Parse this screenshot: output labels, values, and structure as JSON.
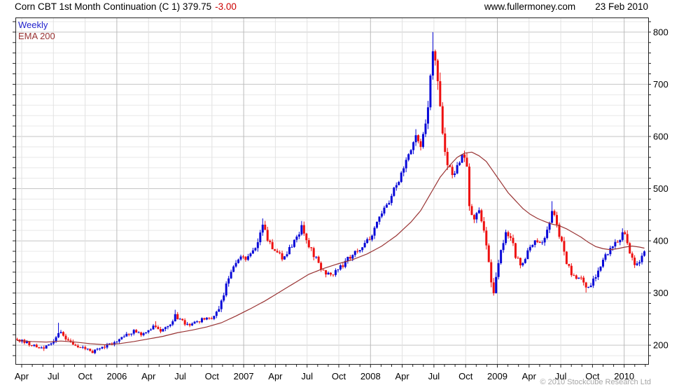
{
  "header": {
    "title": "Corn CBT 1st Month Continuation (C 1) 379.75",
    "change": "-3.00",
    "website": "www.fullermoney.com",
    "date": "23 Feb 2010"
  },
  "legend": {
    "weekly": "Weekly",
    "ema200": "EMA 200"
  },
  "footer": {
    "copyright": "© 2010 Stockcube Research Ltd"
  },
  "chart_data": {
    "type": "candlestick",
    "title": "Corn CBT 1st Month Continuation (C 1)",
    "interval": "weekly",
    "last_price": 379.75,
    "change": -3.0,
    "weeks": 259,
    "x_range": {
      "start": "Mar 2005",
      "end": "Feb 2010"
    },
    "ylim": [
      164,
      828
    ],
    "y_ticks": [
      200,
      300,
      400,
      500,
      600,
      700,
      800
    ],
    "y_minor_step": 20,
    "y_axis_side": "right",
    "grid": true,
    "legend_position": "top-left",
    "x_labels": [
      "Apr",
      "Jul",
      "Oct",
      "2006",
      "Apr",
      "Jul",
      "Oct",
      "2007",
      "Apr",
      "Jul",
      "Oct",
      "2008",
      "Apr",
      "Jul",
      "Oct",
      "2009",
      "Apr",
      "Jul",
      "Oct",
      "2010"
    ],
    "x_label_month_step": 3,
    "close_keypoints": [
      [
        0,
        211
      ],
      [
        3,
        206
      ],
      [
        6,
        200
      ],
      [
        9,
        195
      ],
      [
        11,
        193
      ],
      [
        13,
        200
      ],
      [
        16,
        213
      ],
      [
        17,
        226
      ],
      [
        18,
        228
      ],
      [
        20,
        213
      ],
      [
        23,
        203
      ],
      [
        26,
        197
      ],
      [
        29,
        192
      ],
      [
        31,
        188
      ],
      [
        34,
        193
      ],
      [
        37,
        199
      ],
      [
        40,
        206
      ],
      [
        42,
        215
      ],
      [
        45,
        222
      ],
      [
        48,
        227
      ],
      [
        51,
        221
      ],
      [
        54,
        229
      ],
      [
        57,
        238
      ],
      [
        59,
        227
      ],
      [
        61,
        233
      ],
      [
        63,
        243
      ],
      [
        65,
        257
      ],
      [
        67,
        247
      ],
      [
        69,
        242
      ],
      [
        71,
        238
      ],
      [
        73,
        244
      ],
      [
        75,
        247
      ],
      [
        77,
        250
      ],
      [
        79,
        251
      ],
      [
        80,
        253
      ],
      [
        82,
        262
      ],
      [
        84,
        285
      ],
      [
        86,
        312
      ],
      [
        88,
        338
      ],
      [
        90,
        358
      ],
      [
        92,
        369
      ],
      [
        94,
        365
      ],
      [
        96,
        375
      ],
      [
        98,
        386
      ],
      [
        100,
        420
      ],
      [
        101,
        430
      ],
      [
        103,
        404
      ],
      [
        105,
        388
      ],
      [
        107,
        377
      ],
      [
        109,
        367
      ],
      [
        111,
        376
      ],
      [
        113,
        391
      ],
      [
        115,
        408
      ],
      [
        117,
        426
      ],
      [
        119,
        404
      ],
      [
        121,
        383
      ],
      [
        123,
        364
      ],
      [
        125,
        349
      ],
      [
        127,
        339
      ],
      [
        130,
        337
      ],
      [
        133,
        349
      ],
      [
        136,
        365
      ],
      [
        139,
        377
      ],
      [
        142,
        389
      ],
      [
        145,
        406
      ],
      [
        147,
        424
      ],
      [
        149,
        444
      ],
      [
        152,
        468
      ],
      [
        155,
        498
      ],
      [
        158,
        530
      ],
      [
        160,
        554
      ],
      [
        162,
        578
      ],
      [
        164,
        600
      ],
      [
        166,
        584
      ],
      [
        167,
        598
      ],
      [
        168,
        622
      ],
      [
        169,
        662
      ],
      [
        170,
        718
      ],
      [
        171,
        772
      ],
      [
        172,
        752
      ],
      [
        173,
        708
      ],
      [
        174,
        658
      ],
      [
        175,
        612
      ],
      [
        176,
        578
      ],
      [
        177,
        550
      ],
      [
        178,
        538
      ],
      [
        179,
        522
      ],
      [
        181,
        548
      ],
      [
        183,
        562
      ],
      [
        184,
        566
      ],
      [
        185,
        540
      ],
      [
        186,
        468
      ],
      [
        187,
        452
      ],
      [
        188,
        442
      ],
      [
        189,
        458
      ],
      [
        190,
        462
      ],
      [
        191,
        440
      ],
      [
        192,
        428
      ],
      [
        193,
        398
      ],
      [
        194,
        368
      ],
      [
        195,
        318
      ],
      [
        196,
        302
      ],
      [
        197,
        332
      ],
      [
        198,
        358
      ],
      [
        199,
        380
      ],
      [
        200,
        398
      ],
      [
        201,
        412
      ],
      [
        203,
        405
      ],
      [
        205,
        372
      ],
      [
        207,
        352
      ],
      [
        209,
        368
      ],
      [
        211,
        386
      ],
      [
        213,
        398
      ],
      [
        215,
        392
      ],
      [
        217,
        408
      ],
      [
        219,
        440
      ],
      [
        220,
        460
      ],
      [
        221,
        452
      ],
      [
        222,
        432
      ],
      [
        224,
        396
      ],
      [
        226,
        356
      ],
      [
        228,
        338
      ],
      [
        230,
        331
      ],
      [
        232,
        334
      ],
      [
        233,
        315
      ],
      [
        234,
        307
      ],
      [
        236,
        318
      ],
      [
        238,
        334
      ],
      [
        240,
        354
      ],
      [
        242,
        369
      ],
      [
        244,
        383
      ],
      [
        246,
        396
      ],
      [
        248,
        407
      ],
      [
        249,
        414
      ],
      [
        250,
        410
      ],
      [
        251,
        396
      ],
      [
        252,
        379
      ],
      [
        253,
        362
      ],
      [
        254,
        355
      ],
      [
        255,
        353
      ],
      [
        256,
        363
      ],
      [
        257,
        371
      ],
      [
        258,
        379.75
      ]
    ],
    "spike_highs": [
      [
        17,
        243
      ],
      [
        57,
        246
      ],
      [
        65,
        268
      ],
      [
        101,
        443
      ],
      [
        117,
        438
      ],
      [
        164,
        614
      ],
      [
        171,
        800
      ],
      [
        220,
        476
      ],
      [
        249,
        424
      ]
    ],
    "spike_lows": [
      [
        11,
        189
      ],
      [
        31,
        185
      ],
      [
        127,
        330
      ],
      [
        196,
        295
      ],
      [
        234,
        301
      ],
      [
        254,
        348
      ]
    ],
    "ema200_keypoints": [
      [
        0,
        209
      ],
      [
        6,
        207
      ],
      [
        12,
        206
      ],
      [
        18,
        208
      ],
      [
        24,
        206
      ],
      [
        30,
        203
      ],
      [
        36,
        201
      ],
      [
        42,
        203
      ],
      [
        48,
        207
      ],
      [
        54,
        212
      ],
      [
        60,
        217
      ],
      [
        66,
        224
      ],
      [
        72,
        229
      ],
      [
        78,
        235
      ],
      [
        84,
        243
      ],
      [
        90,
        256
      ],
      [
        96,
        270
      ],
      [
        102,
        285
      ],
      [
        108,
        302
      ],
      [
        114,
        319
      ],
      [
        120,
        336
      ],
      [
        126,
        347
      ],
      [
        132,
        356
      ],
      [
        138,
        364
      ],
      [
        144,
        375
      ],
      [
        150,
        390
      ],
      [
        156,
        410
      ],
      [
        162,
        436
      ],
      [
        166,
        458
      ],
      [
        170,
        490
      ],
      [
        174,
        522
      ],
      [
        178,
        545
      ],
      [
        181,
        560
      ],
      [
        184,
        568
      ],
      [
        187,
        570
      ],
      [
        190,
        563
      ],
      [
        193,
        552
      ],
      [
        196,
        532
      ],
      [
        199,
        512
      ],
      [
        202,
        492
      ],
      [
        205,
        477
      ],
      [
        208,
        462
      ],
      [
        211,
        451
      ],
      [
        214,
        443
      ],
      [
        217,
        437
      ],
      [
        220,
        432
      ],
      [
        223,
        429
      ],
      [
        226,
        423
      ],
      [
        229,
        415
      ],
      [
        232,
        407
      ],
      [
        235,
        397
      ],
      [
        238,
        389
      ],
      [
        241,
        385
      ],
      [
        244,
        383
      ],
      [
        247,
        385
      ],
      [
        250,
        388
      ],
      [
        253,
        390
      ],
      [
        256,
        388
      ],
      [
        258,
        386
      ]
    ],
    "colors": {
      "up": "#0808D8",
      "down": "#EE1010",
      "ema": "#993333",
      "legend_weekly": "#2222CC",
      "change_negative": "#CC0000",
      "grid_minor": "#E8E8E8",
      "grid_major": "#C5C5C5",
      "grid_quarter": "#E2E2E2",
      "grid_year": "#BBBBBB",
      "axis": "#222222",
      "text": "#000000",
      "copyright": "#A6A6A6"
    }
  }
}
